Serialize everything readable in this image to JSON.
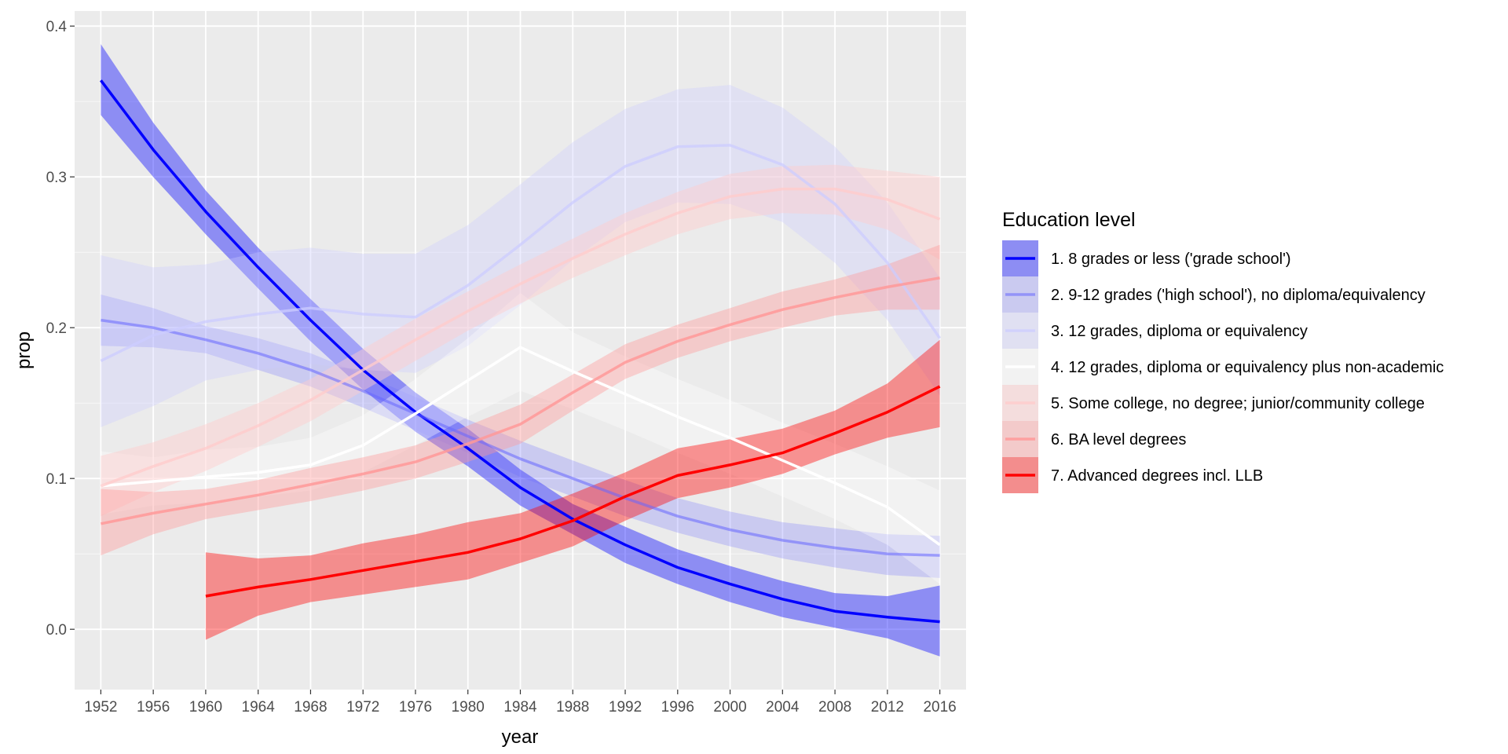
{
  "chart_data": {
    "type": "line",
    "title": "",
    "xlabel": "year",
    "ylabel": "prop",
    "xlim": [
      1950,
      2018
    ],
    "ylim": [
      -0.04,
      0.41
    ],
    "x_ticks": [
      1952,
      1956,
      1960,
      1964,
      1968,
      1972,
      1976,
      1980,
      1984,
      1988,
      1992,
      1996,
      2000,
      2004,
      2008,
      2012,
      2016
    ],
    "y_ticks": [
      {
        "value": 0.0,
        "label": "0.0"
      },
      {
        "value": 0.1,
        "label": "0.1"
      },
      {
        "value": 0.2,
        "label": "0.2"
      },
      {
        "value": 0.3,
        "label": "0.3"
      },
      {
        "value": 0.4,
        "label": "0.4"
      }
    ],
    "grid": true,
    "legend": {
      "title": "Education level",
      "position": "right"
    },
    "series": [
      {
        "name": "1. 8 grades or less ('grade school')",
        "color": "#0000ff",
        "line_opacity": 1.0,
        "band_opacity": 0.4,
        "x": [
          1952,
          1956,
          1960,
          1964,
          1968,
          1972,
          1976,
          1980,
          1984,
          1988,
          1992,
          1996,
          2000,
          2004,
          2008,
          2012,
          2016
        ],
        "y": [
          0.364,
          0.318,
          0.277,
          0.24,
          0.205,
          0.172,
          0.144,
          0.12,
          0.094,
          0.073,
          0.056,
          0.041,
          0.03,
          0.02,
          0.012,
          0.008,
          0.005
        ],
        "ymin": [
          0.341,
          0.3,
          0.262,
          0.226,
          0.191,
          0.159,
          0.131,
          0.108,
          0.082,
          0.063,
          0.044,
          0.03,
          0.018,
          0.008,
          0.001,
          -0.006,
          -0.018
        ],
        "ymax": [
          0.388,
          0.336,
          0.291,
          0.253,
          0.219,
          0.186,
          0.157,
          0.133,
          0.106,
          0.083,
          0.068,
          0.053,
          0.042,
          0.032,
          0.024,
          0.022,
          0.029
        ]
      },
      {
        "name": "2. 9-12 grades ('high school'), no diploma/equivalency",
        "color": "#6666ff",
        "line_opacity": 0.55,
        "band_opacity": 0.25,
        "x": [
          1952,
          1956,
          1960,
          1964,
          1968,
          1972,
          1976,
          1980,
          1984,
          1988,
          1992,
          1996,
          2000,
          2004,
          2008,
          2012,
          2016
        ],
        "y": [
          0.205,
          0.2,
          0.192,
          0.183,
          0.172,
          0.158,
          0.143,
          0.128,
          0.113,
          0.1,
          0.087,
          0.075,
          0.066,
          0.059,
          0.054,
          0.05,
          0.049
        ],
        "ymin": [
          0.188,
          0.187,
          0.183,
          0.172,
          0.161,
          0.147,
          0.132,
          0.117,
          0.101,
          0.088,
          0.075,
          0.064,
          0.055,
          0.047,
          0.041,
          0.036,
          0.034
        ],
        "ymax": [
          0.222,
          0.213,
          0.201,
          0.193,
          0.183,
          0.169,
          0.154,
          0.139,
          0.125,
          0.112,
          0.099,
          0.087,
          0.078,
          0.071,
          0.067,
          0.063,
          0.062
        ]
      },
      {
        "name": "3. 12 grades, diploma or equivalency",
        "color": "#ccccff",
        "line_opacity": 0.75,
        "band_opacity": 0.35,
        "x": [
          1952,
          1956,
          1960,
          1964,
          1968,
          1972,
          1976,
          1980,
          1984,
          1988,
          1992,
          1996,
          2000,
          2004,
          2008,
          2012,
          2016
        ],
        "y": [
          0.178,
          0.195,
          0.204,
          0.209,
          0.213,
          0.209,
          0.207,
          0.228,
          0.255,
          0.283,
          0.307,
          0.32,
          0.321,
          0.308,
          0.282,
          0.243,
          0.193
        ],
        "ymin": [
          0.134,
          0.148,
          0.165,
          0.172,
          0.176,
          0.172,
          0.17,
          0.188,
          0.215,
          0.245,
          0.27,
          0.283,
          0.282,
          0.27,
          0.243,
          0.205,
          0.155
        ],
        "ymax": [
          0.248,
          0.24,
          0.242,
          0.25,
          0.253,
          0.249,
          0.249,
          0.268,
          0.295,
          0.323,
          0.345,
          0.358,
          0.361,
          0.346,
          0.32,
          0.283,
          0.233
        ]
      },
      {
        "name": "4. 12 grades, diploma or equivalency plus non-academic",
        "color": "#ffffff",
        "line_opacity": 1.0,
        "band_opacity": 0.35,
        "x": [
          1952,
          1956,
          1960,
          1964,
          1968,
          1972,
          1976,
          1980,
          1984,
          1988,
          1992,
          1996,
          2000,
          2004,
          2008,
          2012,
          2016
        ],
        "y": [
          0.095,
          0.098,
          0.101,
          0.104,
          0.109,
          0.122,
          0.143,
          0.165,
          0.187,
          0.171,
          0.156,
          0.141,
          0.127,
          0.112,
          0.097,
          0.081,
          0.056
        ],
        "ymin": [
          0.076,
          0.082,
          0.084,
          0.088,
          0.092,
          0.104,
          0.122,
          0.141,
          0.158,
          0.146,
          0.132,
          0.117,
          0.103,
          0.088,
          0.073,
          0.056,
          0.03
        ],
        "ymax": [
          0.118,
          0.114,
          0.119,
          0.121,
          0.127,
          0.142,
          0.166,
          0.193,
          0.223,
          0.197,
          0.181,
          0.166,
          0.152,
          0.137,
          0.123,
          0.108,
          0.092
        ]
      },
      {
        "name": "5. Some college, no degree; junior/community college",
        "color": "#ffcccc",
        "line_opacity": 0.8,
        "band_opacity": 0.45,
        "x": [
          1952,
          1956,
          1960,
          1964,
          1968,
          1972,
          1976,
          1980,
          1984,
          1988,
          1992,
          1996,
          2000,
          2004,
          2008,
          2012,
          2016
        ],
        "y": [
          0.095,
          0.108,
          0.12,
          0.135,
          0.152,
          0.172,
          0.192,
          0.211,
          0.229,
          0.246,
          0.262,
          0.276,
          0.287,
          0.292,
          0.292,
          0.285,
          0.272
        ],
        "ymin": [
          0.075,
          0.091,
          0.105,
          0.121,
          0.138,
          0.158,
          0.178,
          0.198,
          0.216,
          0.233,
          0.248,
          0.262,
          0.272,
          0.276,
          0.275,
          0.265,
          0.245
        ],
        "ymax": [
          0.115,
          0.124,
          0.136,
          0.15,
          0.166,
          0.186,
          0.206,
          0.224,
          0.242,
          0.259,
          0.276,
          0.29,
          0.302,
          0.307,
          0.308,
          0.304,
          0.3
        ]
      },
      {
        "name": "6. BA level degrees",
        "color": "#ff9999",
        "line_opacity": 0.85,
        "band_opacity": 0.4,
        "x": [
          1952,
          1956,
          1960,
          1964,
          1968,
          1972,
          1976,
          1980,
          1984,
          1988,
          1992,
          1996,
          2000,
          2004,
          2008,
          2012,
          2016
        ],
        "y": [
          0.07,
          0.077,
          0.083,
          0.089,
          0.096,
          0.103,
          0.111,
          0.123,
          0.136,
          0.157,
          0.177,
          0.191,
          0.202,
          0.212,
          0.22,
          0.227,
          0.233
        ],
        "ymin": [
          0.049,
          0.063,
          0.073,
          0.079,
          0.085,
          0.092,
          0.1,
          0.111,
          0.123,
          0.145,
          0.166,
          0.18,
          0.191,
          0.2,
          0.208,
          0.212,
          0.212
        ],
        "ymax": [
          0.093,
          0.091,
          0.093,
          0.099,
          0.107,
          0.114,
          0.122,
          0.135,
          0.149,
          0.169,
          0.189,
          0.202,
          0.213,
          0.224,
          0.232,
          0.242,
          0.255
        ]
      },
      {
        "name": "7. Advanced degrees incl. LLB",
        "color": "#ff0000",
        "line_opacity": 1.0,
        "band_opacity": 0.4,
        "x": [
          1960,
          1964,
          1968,
          1972,
          1976,
          1980,
          1984,
          1988,
          1992,
          1996,
          2000,
          2004,
          2008,
          2012,
          2016
        ],
        "y": [
          0.022,
          0.028,
          0.033,
          0.039,
          0.045,
          0.051,
          0.06,
          0.072,
          0.088,
          0.102,
          0.109,
          0.117,
          0.13,
          0.144,
          0.161
        ],
        "ymin": [
          -0.007,
          0.009,
          0.018,
          0.023,
          0.028,
          0.033,
          0.044,
          0.055,
          0.072,
          0.087,
          0.094,
          0.103,
          0.116,
          0.127,
          0.134
        ],
        "ymax": [
          0.051,
          0.047,
          0.049,
          0.057,
          0.063,
          0.071,
          0.077,
          0.09,
          0.104,
          0.12,
          0.126,
          0.133,
          0.145,
          0.163,
          0.192
        ]
      }
    ]
  }
}
